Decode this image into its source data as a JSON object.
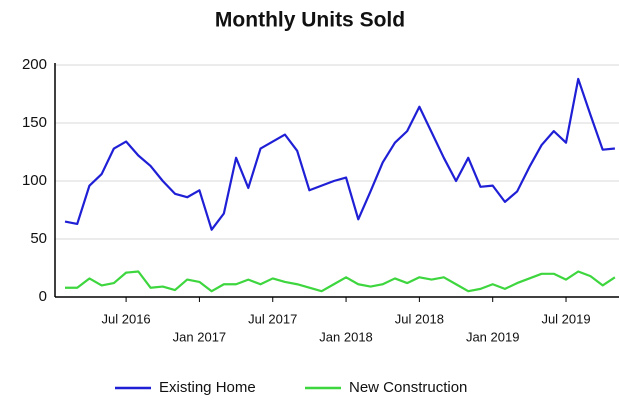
{
  "chart_data": {
    "type": "line",
    "title": "Monthly Units Sold",
    "categories": [
      null,
      null,
      null,
      null,
      null,
      "Jul 2016",
      null,
      null,
      null,
      null,
      null,
      "Jan 2017",
      null,
      null,
      null,
      null,
      null,
      "Jul 2017",
      null,
      null,
      null,
      null,
      null,
      "Jan 2018",
      null,
      null,
      null,
      null,
      null,
      "Jul 2018",
      null,
      null,
      null,
      null,
      null,
      "Jan 2019",
      null,
      null,
      null,
      null,
      null,
      "Jul 2019",
      null,
      null,
      null,
      null
    ],
    "series": [
      {
        "name": "Existing Home",
        "color": "#1f1fd6",
        "values": [
          65,
          63,
          96,
          106,
          128,
          134,
          122,
          113,
          100,
          89,
          86,
          92,
          58,
          72,
          120,
          94,
          128,
          134,
          140,
          126,
          92,
          96,
          100,
          103,
          67,
          91,
          116,
          133,
          143,
          164,
          142,
          120,
          100,
          120,
          95,
          96,
          82,
          91,
          112,
          131,
          143,
          133,
          188,
          157,
          127,
          128
        ]
      },
      {
        "name": "New Construction",
        "color": "#3ed63e",
        "values": [
          8,
          8,
          16,
          10,
          12,
          21,
          22,
          8,
          9,
          6,
          15,
          13,
          5,
          11,
          11,
          15,
          11,
          16,
          13,
          11,
          8,
          5,
          11,
          17,
          11,
          9,
          11,
          16,
          12,
          17,
          15,
          17,
          11,
          5,
          7,
          11,
          7,
          12,
          16,
          20,
          20,
          15,
          22,
          18,
          10,
          17
        ]
      }
    ],
    "ylim": [
      0,
      200
    ],
    "yticks": [
      0,
      50,
      100,
      150,
      200
    ],
    "grid": true,
    "legend": "bottom"
  }
}
